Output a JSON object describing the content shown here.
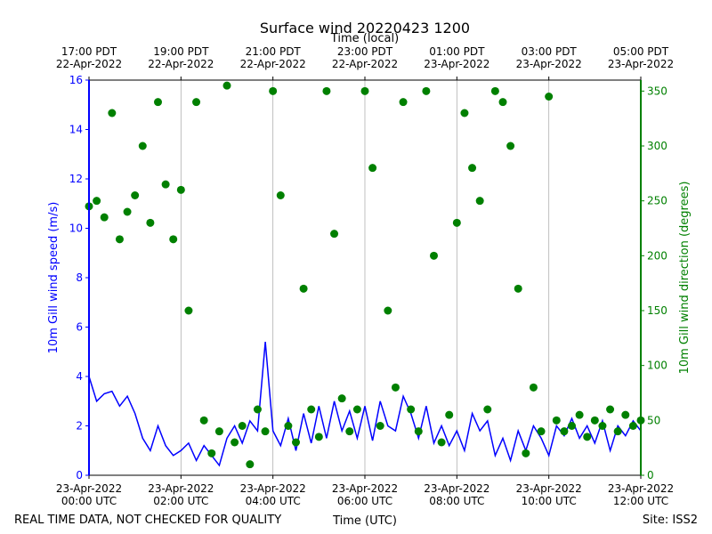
{
  "chart_data": {
    "type": "line",
    "title": "Surface wind 20220423 1200",
    "xlabel": "Time (UTC)",
    "x2label": "Time (local)",
    "ylabel": "10m Gill wind speed (m/s)",
    "y2label": "10m Gill wind direction (degrees)",
    "footer_left": "REAL TIME DATA, NOT CHECKED FOR QUALITY",
    "footer_right": "Site: ISS2",
    "grid": "x",
    "xlim": [
      "2022-04-23 00:00",
      "2022-04-23 12:00"
    ],
    "ylim": [
      0,
      16
    ],
    "y2lim": [
      0,
      360
    ],
    "yticks": [
      0,
      2,
      4,
      6,
      8,
      10,
      12,
      14,
      16
    ],
    "y2ticks": [
      0,
      50,
      100,
      150,
      200,
      250,
      300,
      350
    ],
    "xticks": [
      {
        "value": "2022-04-23 00:00",
        "label": [
          "23-Apr-2022",
          "00:00 UTC"
        ]
      },
      {
        "value": "2022-04-23 02:00",
        "label": [
          "23-Apr-2022",
          "02:00 UTC"
        ]
      },
      {
        "value": "2022-04-23 04:00",
        "label": [
          "23-Apr-2022",
          "04:00 UTC"
        ]
      },
      {
        "value": "2022-04-23 06:00",
        "label": [
          "23-Apr-2022",
          "06:00 UTC"
        ]
      },
      {
        "value": "2022-04-23 08:00",
        "label": [
          "23-Apr-2022",
          "08:00 UTC"
        ]
      },
      {
        "value": "2022-04-23 10:00",
        "label": [
          "23-Apr-2022",
          "10:00 UTC"
        ]
      },
      {
        "value": "2022-04-23 12:00",
        "label": [
          "23-Apr-2022",
          "12:00 UTC"
        ]
      }
    ],
    "x2ticks": [
      {
        "value": "2022-04-23 00:00",
        "label": [
          "17:00 PDT",
          "22-Apr-2022"
        ]
      },
      {
        "value": "2022-04-23 02:00",
        "label": [
          "19:00 PDT",
          "22-Apr-2022"
        ]
      },
      {
        "value": "2022-04-23 04:00",
        "label": [
          "21:00 PDT",
          "22-Apr-2022"
        ]
      },
      {
        "value": "2022-04-23 06:00",
        "label": [
          "23:00 PDT",
          "22-Apr-2022"
        ]
      },
      {
        "value": "2022-04-23 08:00",
        "label": [
          "01:00 PDT",
          "23-Apr-2022"
        ]
      },
      {
        "value": "2022-04-23 10:00",
        "label": [
          "03:00 PDT",
          "23-Apr-2022"
        ]
      },
      {
        "value": "2022-04-23 12:00",
        "label": [
          "05:00 PDT",
          "23-Apr-2022"
        ]
      }
    ],
    "x": [
      "2022-04-23 00:00",
      "2022-04-23 00:10",
      "2022-04-23 00:20",
      "2022-04-23 00:30",
      "2022-04-23 00:40",
      "2022-04-23 00:50",
      "2022-04-23 01:00",
      "2022-04-23 01:10",
      "2022-04-23 01:20",
      "2022-04-23 01:30",
      "2022-04-23 01:40",
      "2022-04-23 01:50",
      "2022-04-23 02:00",
      "2022-04-23 02:10",
      "2022-04-23 02:20",
      "2022-04-23 02:30",
      "2022-04-23 02:40",
      "2022-04-23 02:50",
      "2022-04-23 03:00",
      "2022-04-23 03:10",
      "2022-04-23 03:20",
      "2022-04-23 03:30",
      "2022-04-23 03:40",
      "2022-04-23 03:50",
      "2022-04-23 04:00",
      "2022-04-23 04:10",
      "2022-04-23 04:20",
      "2022-04-23 04:30",
      "2022-04-23 04:40",
      "2022-04-23 04:50",
      "2022-04-23 05:00",
      "2022-04-23 05:10",
      "2022-04-23 05:20",
      "2022-04-23 05:30",
      "2022-04-23 05:40",
      "2022-04-23 05:50",
      "2022-04-23 06:00",
      "2022-04-23 06:10",
      "2022-04-23 06:20",
      "2022-04-23 06:30",
      "2022-04-23 06:40",
      "2022-04-23 06:50",
      "2022-04-23 07:00",
      "2022-04-23 07:10",
      "2022-04-23 07:20",
      "2022-04-23 07:30",
      "2022-04-23 07:40",
      "2022-04-23 07:50",
      "2022-04-23 08:00",
      "2022-04-23 08:10",
      "2022-04-23 08:20",
      "2022-04-23 08:30",
      "2022-04-23 08:40",
      "2022-04-23 08:50",
      "2022-04-23 09:00",
      "2022-04-23 09:10",
      "2022-04-23 09:20",
      "2022-04-23 09:30",
      "2022-04-23 09:40",
      "2022-04-23 09:50",
      "2022-04-23 10:00",
      "2022-04-23 10:10",
      "2022-04-23 10:20",
      "2022-04-23 10:30",
      "2022-04-23 10:40",
      "2022-04-23 10:50",
      "2022-04-23 11:00",
      "2022-04-23 11:10",
      "2022-04-23 11:20",
      "2022-04-23 11:30",
      "2022-04-23 11:40",
      "2022-04-23 11:50",
      "2022-04-23 12:00"
    ],
    "series": [
      {
        "style": "line",
        "color": "#0000ff",
        "values": [
          4.0,
          3.0,
          3.3,
          3.4,
          2.8,
          3.2,
          2.5,
          1.5,
          1.0,
          2.0,
          1.2,
          0.8,
          1.0,
          1.3,
          0.6,
          1.2,
          0.8,
          0.4,
          1.5,
          2.0,
          1.3,
          2.2,
          1.8,
          5.4,
          1.8,
          1.2,
          2.3,
          1.0,
          2.5,
          1.3,
          2.8,
          1.5,
          3.0,
          1.8,
          2.6,
          1.5,
          2.8,
          1.4,
          3.0,
          2.0,
          1.8,
          3.2,
          2.5,
          1.5,
          2.8,
          1.3,
          2.0,
          1.2,
          1.8,
          1.0,
          2.5,
          1.8,
          2.2,
          0.8,
          1.5,
          0.6,
          1.8,
          1.0,
          2.0,
          1.5,
          0.8,
          2.0,
          1.6,
          2.3,
          1.5,
          2.0,
          1.3,
          2.2,
          1.0,
          2.0,
          1.6,
          2.2,
          1.8
        ]
      },
      {
        "style": "scatter",
        "axis": "y2",
        "color": "#008000",
        "values": [
          245,
          250,
          235,
          330,
          215,
          240,
          255,
          300,
          230,
          340,
          265,
          215,
          260,
          150,
          340,
          50,
          20,
          40,
          355,
          30,
          45,
          10,
          60,
          40,
          350,
          255,
          45,
          30,
          170,
          60,
          35,
          350,
          220,
          70,
          40,
          60,
          350,
          280,
          45,
          150,
          80,
          340,
          60,
          40,
          350,
          200,
          30,
          55,
          230,
          330,
          280,
          250,
          60,
          350,
          340,
          300,
          170,
          20,
          80,
          40,
          345,
          50,
          40,
          45,
          55,
          35,
          50,
          45,
          60,
          40,
          55,
          45,
          50
        ]
      }
    ]
  }
}
